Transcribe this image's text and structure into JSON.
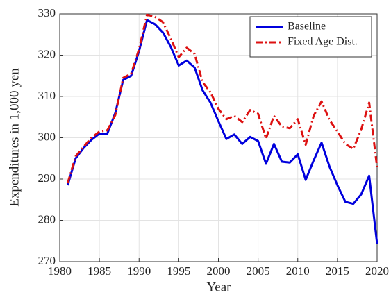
{
  "chart_data": {
    "type": "line",
    "xlabel": "Year",
    "ylabel": "Expenditures in 1,000 yen",
    "x": [
      1981,
      1982,
      1983,
      1984,
      1985,
      1986,
      1987,
      1988,
      1989,
      1990,
      1991,
      1992,
      1993,
      1994,
      1995,
      1996,
      1997,
      1998,
      1999,
      2000,
      2001,
      2002,
      2003,
      2004,
      2005,
      2006,
      2007,
      2008,
      2009,
      2010,
      2011,
      2012,
      2013,
      2014,
      2015,
      2016,
      2017,
      2018,
      2019,
      2020
    ],
    "series": [
      {
        "name": "Baseline",
        "color": "#0000dd",
        "linestyle": "solid",
        "values": [
          288.5,
          295,
          297.5,
          299.5,
          301,
          301,
          306,
          314,
          315,
          321,
          328.5,
          327.5,
          325.5,
          322,
          317.5,
          318.7,
          317,
          311.5,
          308.5,
          304,
          299.7,
          300.8,
          298.5,
          300.2,
          299.2,
          293.7,
          298.5,
          294.2,
          294,
          296,
          289.8,
          294.5,
          298.8,
          293,
          288.5,
          284.5,
          284,
          286.3,
          290.8,
          274.3
        ]
      },
      {
        "name": "Fixed Age Dist.",
        "color": "#dd1111",
        "linestyle": "dashdot",
        "values": [
          289,
          295.5,
          297.8,
          300,
          301.5,
          301.8,
          305.5,
          314.5,
          315.5,
          321.5,
          329.8,
          329.3,
          328,
          324,
          319.5,
          321.8,
          320.3,
          313.5,
          311,
          307,
          304.5,
          305.3,
          303.8,
          306.7,
          305.8,
          299.8,
          305.3,
          302.7,
          302.3,
          304.5,
          298.3,
          305.3,
          308.8,
          304.3,
          301.5,
          298.5,
          297.3,
          302,
          308.5,
          292.8
        ]
      }
    ],
    "xlim": [
      1980,
      2020
    ],
    "xticks": [
      1980,
      1985,
      1990,
      1995,
      2000,
      2005,
      2010,
      2015,
      2020
    ],
    "ylim": [
      270,
      330
    ],
    "yticks": [
      270,
      280,
      290,
      300,
      310,
      320,
      330
    ],
    "grid": true,
    "legend": "top-right"
  }
}
